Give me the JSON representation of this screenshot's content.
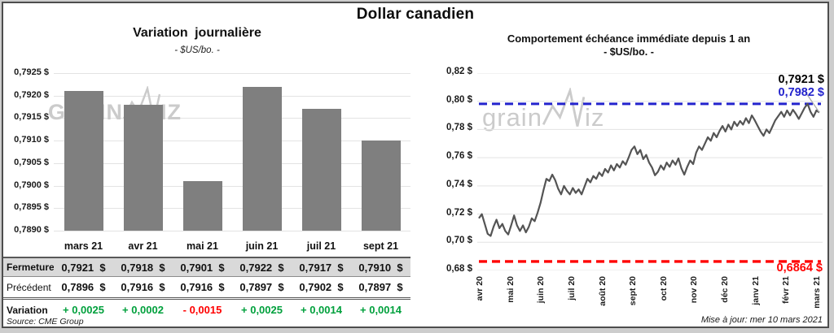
{
  "page": {
    "title": "Dollar canadien",
    "source": "Source: CME Group",
    "updated": "Mise à jour: mer 10 mars 2021",
    "watermark": {
      "upper_a": "GRAIN",
      "upper_b": "IZ",
      "lower_a": "grain",
      "lower_b": "iz"
    }
  },
  "colors": {
    "bar": "#7f7f7f",
    "line": "#545454",
    "grid": "#e3e3e3",
    "blue_dash": "#2323cd",
    "red_dash": "#ff0000",
    "green_text": "#00a03c",
    "red_text": "#ff0000",
    "table_header_bg": "#d9d9d9",
    "callout": "#a6a6a6",
    "watermark": "#cbcbcb"
  },
  "chart_data": [
    {
      "type": "bar",
      "title": "Variation journalière",
      "subtitle": "- $US/bo. -",
      "categories": [
        "mars 21",
        "avr 21",
        "mai 21",
        "juin 21",
        "juil 21",
        "sept 21"
      ],
      "values": [
        0.7921,
        0.7918,
        0.7901,
        0.7922,
        0.7917,
        0.791
      ],
      "ylim": [
        0.789,
        0.7925
      ],
      "ytick_labels": [
        "0,7925 $",
        "0,7920 $",
        "0,7915 $",
        "0,7910 $",
        "0,7905 $",
        "0,7900 $",
        "0,7895 $",
        "0,7890 $"
      ],
      "grid": true,
      "legend": "none"
    },
    {
      "type": "line",
      "title": "Comportement échéance immédiate depuis 1 an",
      "subtitle": "- $US/bo. -",
      "x_labels": [
        "avr 20",
        "mai 20",
        "juin 20",
        "juil 20",
        "août 20",
        "sept 20",
        "oct 20",
        "nov 20",
        "déc 20",
        "janv 21",
        "févr 21",
        "mars 21"
      ],
      "ylim": [
        0.68,
        0.82
      ],
      "ytick_labels": [
        "0,82 $",
        "0,80 $",
        "0,78 $",
        "0,76 $",
        "0,74 $",
        "0,72 $",
        "0,70 $",
        "0,68 $"
      ],
      "values": [
        0.717,
        0.72,
        0.713,
        0.706,
        0.7045,
        0.711,
        0.716,
        0.71,
        0.713,
        0.708,
        0.7055,
        0.712,
        0.719,
        0.712,
        0.708,
        0.712,
        0.707,
        0.711,
        0.717,
        0.715,
        0.721,
        0.728,
        0.737,
        0.745,
        0.7435,
        0.748,
        0.744,
        0.738,
        0.734,
        0.74,
        0.7365,
        0.734,
        0.7385,
        0.735,
        0.7375,
        0.734,
        0.7395,
        0.745,
        0.7425,
        0.747,
        0.745,
        0.7495,
        0.747,
        0.752,
        0.7495,
        0.7545,
        0.751,
        0.7555,
        0.753,
        0.7575,
        0.755,
        0.76,
        0.7655,
        0.768,
        0.7625,
        0.7655,
        0.759,
        0.762,
        0.7565,
        0.753,
        0.7475,
        0.75,
        0.7545,
        0.7515,
        0.7565,
        0.7535,
        0.758,
        0.755,
        0.7595,
        0.7525,
        0.748,
        0.7535,
        0.758,
        0.7555,
        0.7635,
        0.768,
        0.7655,
        0.77,
        0.7745,
        0.772,
        0.7775,
        0.7745,
        0.779,
        0.7825,
        0.7785,
        0.7835,
        0.78,
        0.7855,
        0.7825,
        0.786,
        0.7835,
        0.788,
        0.7845,
        0.79,
        0.7865,
        0.7825,
        0.7785,
        0.7755,
        0.78,
        0.7775,
        0.782,
        0.7865,
        0.7895,
        0.7925,
        0.789,
        0.7935,
        0.79,
        0.794,
        0.791,
        0.7875,
        0.7915,
        0.7955,
        0.7982,
        0.7925,
        0.789,
        0.7935,
        0.7921
      ],
      "ref_lines": [
        {
          "value": 0.7982,
          "label": "0,7982 $",
          "color": "#2323cd",
          "style": "dashed"
        },
        {
          "value": 0.6864,
          "label": "0,6864 $",
          "color": "#ff0000",
          "style": "dashed"
        }
      ],
      "last_label": {
        "text": "0,7921 $",
        "value": 0.7921
      },
      "grid": true,
      "legend": "none"
    }
  ],
  "table": {
    "columns": [
      "mars 21",
      "avr 21",
      "mai 21",
      "juin 21",
      "juil 21",
      "sept 21"
    ],
    "rows": [
      {
        "label": "Fermeture",
        "style": "fermeture",
        "values": [
          "0,7921  $",
          "0,7918  $",
          "0,7901  $",
          "0,7922  $",
          "0,7917  $",
          "0,7910  $"
        ]
      },
      {
        "label": "Précédent",
        "style": "precedent",
        "values": [
          "0,7896  $",
          "0,7916  $",
          "0,7916  $",
          "0,7897  $",
          "0,7902  $",
          "0,7897  $"
        ]
      },
      {
        "label": "Variation",
        "style": "variation",
        "values": [
          "+ 0,0025",
          "+ 0,0002",
          "- 0,0015",
          "+ 0,0025",
          "+ 0,0014",
          "+ 0,0014"
        ],
        "value_colors": [
          "green",
          "green",
          "red",
          "green",
          "green",
          "green"
        ]
      }
    ]
  }
}
